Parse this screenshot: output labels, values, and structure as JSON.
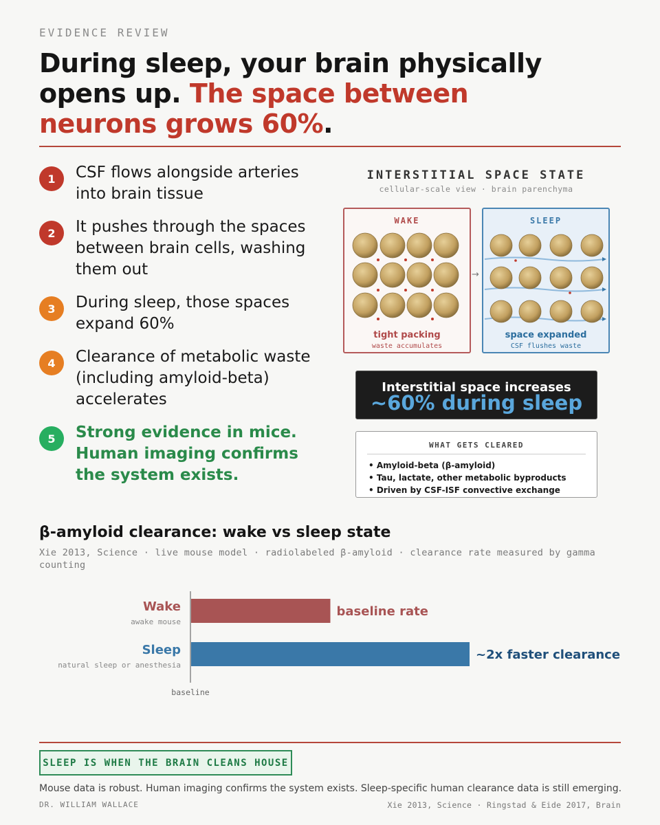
{
  "eyebrow": "EVIDENCE REVIEW",
  "headline": {
    "part1": "During sleep, your brain physically opens up. ",
    "part2": "The space between neurons grows 60%",
    "part3": "."
  },
  "steps": [
    {
      "num": "1",
      "text": "CSF flows alongside arteries into brain tissue",
      "color": "#c0392b"
    },
    {
      "num": "2",
      "text": "It pushes through the spaces between brain cells, washing them out",
      "color": "#c0392b"
    },
    {
      "num": "3",
      "text": "During sleep, those spaces expand 60%",
      "color": "#e67e22"
    },
    {
      "num": "4",
      "text": "Clearance of metabolic waste (including amyloid-beta) accelerates",
      "color": "#e67e22"
    },
    {
      "num": "5",
      "text": "Strong evidence in mice. Human imaging confirms the system exists.",
      "color": "#27ae60"
    }
  ],
  "panel": {
    "title": "INTERSTITIAL SPACE STATE",
    "subtitle": "cellular-scale view · brain parenchyma",
    "arrow": "→",
    "wake": {
      "label": "WAKE",
      "caption": "tight packing",
      "subcaption": "waste accumulates"
    },
    "sleep": {
      "label": "SLEEP",
      "caption": "space expanded",
      "subcaption": "CSF flushes waste"
    }
  },
  "callout": {
    "line1": "Interstitial space increases",
    "line2": "~60% during sleep"
  },
  "cleared": {
    "title": "WHAT GETS CLEARED",
    "items": [
      "• Amyloid-beta (β-amyloid)",
      "• Tau, lactate, other metabolic byproducts",
      "• Driven by CSF-ISF convective exchange"
    ]
  },
  "chart": {
    "title": "β-amyloid clearance: wake vs sleep state",
    "subtitle": "Xie 2013, Science · live mouse model · radiolabeled β-amyloid · clearance rate measured by gamma counting"
  },
  "chart_data": {
    "type": "bar",
    "orientation": "horizontal",
    "categories": [
      "Wake",
      "Sleep"
    ],
    "category_sublabels": [
      "awake mouse",
      "natural sleep or anesthesia"
    ],
    "values": [
      1,
      2
    ],
    "value_labels": [
      "baseline rate",
      "~2x faster clearance"
    ],
    "colors": [
      "#a85454",
      "#3a78a8"
    ],
    "axis_label": "baseline"
  },
  "footer": {
    "tagline": "SLEEP IS WHEN THE BRAIN CLEANS HOUSE",
    "note": "Mouse data is robust. Human imaging confirms the system exists. Sleep-specific human clearance data is still emerging.",
    "author": "DR. WILLIAM WALLACE",
    "refs": "Xie 2013, Science · Ringstad & Eide 2017, Brain"
  },
  "colors": {
    "accent_red": "#c0392b",
    "wake": "#b45a5a",
    "sleep": "#4a86b4",
    "green": "#2e8b57"
  }
}
